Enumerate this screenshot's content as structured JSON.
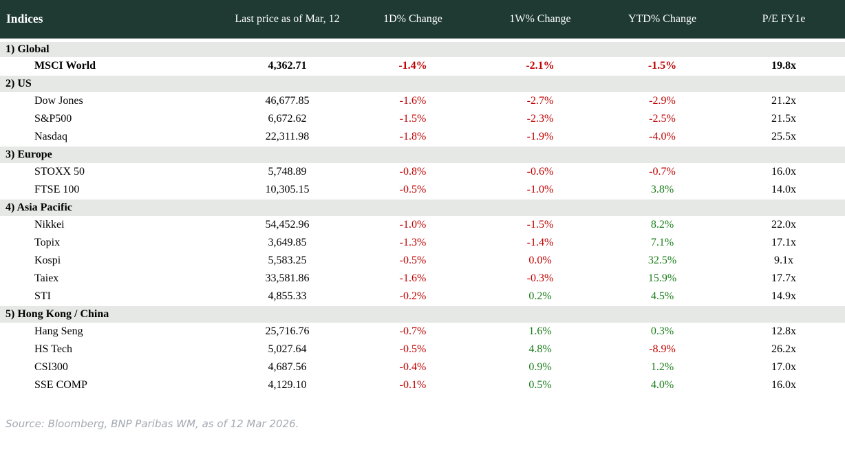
{
  "header": {
    "columns": [
      "Indices",
      "Last price as of Mar, 12",
      "1D% Change",
      "1W% Change",
      "YTD% Change",
      "P/E FY1e"
    ]
  },
  "sections": [
    {
      "label": "1) Global",
      "rows": [
        {
          "name": "MSCI World",
          "last_price": "4,362.71",
          "d1": {
            "text": "-1.4%",
            "tone": "neg"
          },
          "w1": {
            "text": "-2.1%",
            "tone": "neg"
          },
          "ytd": {
            "text": "-1.5%",
            "tone": "neg"
          },
          "pe": "19.8x",
          "bold": true
        }
      ]
    },
    {
      "label": "2) US",
      "rows": [
        {
          "name": "Dow Jones",
          "last_price": "46,677.85",
          "d1": {
            "text": "-1.6%",
            "tone": "neg"
          },
          "w1": {
            "text": "-2.7%",
            "tone": "neg"
          },
          "ytd": {
            "text": "-2.9%",
            "tone": "neg"
          },
          "pe": "21.2x",
          "bold": false
        },
        {
          "name": "S&P500",
          "last_price": "6,672.62",
          "d1": {
            "text": "-1.5%",
            "tone": "neg"
          },
          "w1": {
            "text": "-2.3%",
            "tone": "neg"
          },
          "ytd": {
            "text": "-2.5%",
            "tone": "neg"
          },
          "pe": "21.5x",
          "bold": false
        },
        {
          "name": "Nasdaq",
          "last_price": "22,311.98",
          "d1": {
            "text": "-1.8%",
            "tone": "neg"
          },
          "w1": {
            "text": "-1.9%",
            "tone": "neg"
          },
          "ytd": {
            "text": "-4.0%",
            "tone": "neg"
          },
          "pe": "25.5x",
          "bold": false
        }
      ]
    },
    {
      "label": "3) Europe",
      "rows": [
        {
          "name": "STOXX 50",
          "last_price": "5,748.89",
          "d1": {
            "text": "-0.8%",
            "tone": "neg"
          },
          "w1": {
            "text": "-0.6%",
            "tone": "neg"
          },
          "ytd": {
            "text": "-0.7%",
            "tone": "neg"
          },
          "pe": "16.0x",
          "bold": false
        },
        {
          "name": "FTSE 100",
          "last_price": "10,305.15",
          "d1": {
            "text": "-0.5%",
            "tone": "neg"
          },
          "w1": {
            "text": "-1.0%",
            "tone": "neg"
          },
          "ytd": {
            "text": "3.8%",
            "tone": "pos"
          },
          "pe": "14.0x",
          "bold": false
        }
      ]
    },
    {
      "label": "4) Asia Pacific",
      "rows": [
        {
          "name": "Nikkei",
          "last_price": "54,452.96",
          "d1": {
            "text": "-1.0%",
            "tone": "neg"
          },
          "w1": {
            "text": "-1.5%",
            "tone": "neg"
          },
          "ytd": {
            "text": "8.2%",
            "tone": "pos"
          },
          "pe": "22.0x",
          "bold": false
        },
        {
          "name": "Topix",
          "last_price": "3,649.85",
          "d1": {
            "text": "-1.3%",
            "tone": "neg"
          },
          "w1": {
            "text": "-1.4%",
            "tone": "neg"
          },
          "ytd": {
            "text": "7.1%",
            "tone": "pos"
          },
          "pe": "17.1x",
          "bold": false
        },
        {
          "name": "Kospi",
          "last_price": "5,583.25",
          "d1": {
            "text": "-0.5%",
            "tone": "neg"
          },
          "w1": {
            "text": "0.0%",
            "tone": "neg"
          },
          "ytd": {
            "text": "32.5%",
            "tone": "pos"
          },
          "pe": "9.1x",
          "bold": false
        },
        {
          "name": "Taiex",
          "last_price": "33,581.86",
          "d1": {
            "text": "-1.6%",
            "tone": "neg"
          },
          "w1": {
            "text": "-0.3%",
            "tone": "neg"
          },
          "ytd": {
            "text": "15.9%",
            "tone": "pos"
          },
          "pe": "17.7x",
          "bold": false
        },
        {
          "name": "STI",
          "last_price": "4,855.33",
          "d1": {
            "text": "-0.2%",
            "tone": "neg"
          },
          "w1": {
            "text": "0.2%",
            "tone": "pos"
          },
          "ytd": {
            "text": "4.5%",
            "tone": "pos"
          },
          "pe": "14.9x",
          "bold": false
        }
      ]
    },
    {
      "label": "5) Hong Kong / China",
      "rows": [
        {
          "name": "Hang Seng",
          "last_price": "25,716.76",
          "d1": {
            "text": "-0.7%",
            "tone": "neg"
          },
          "w1": {
            "text": "1.6%",
            "tone": "pos"
          },
          "ytd": {
            "text": "0.3%",
            "tone": "pos"
          },
          "pe": "12.8x",
          "bold": false
        },
        {
          "name": "HS Tech",
          "last_price": "5,027.64",
          "d1": {
            "text": "-0.5%",
            "tone": "neg"
          },
          "w1": {
            "text": "4.8%",
            "tone": "pos"
          },
          "ytd": {
            "text": "-8.9%",
            "tone": "neg"
          },
          "pe": "26.2x",
          "bold": false
        },
        {
          "name": "CSI300",
          "last_price": "4,687.56",
          "d1": {
            "text": "-0.4%",
            "tone": "neg"
          },
          "w1": {
            "text": "0.9%",
            "tone": "pos"
          },
          "ytd": {
            "text": "1.2%",
            "tone": "pos"
          },
          "pe": "17.0x",
          "bold": false
        },
        {
          "name": "SSE COMP",
          "last_price": "4,129.10",
          "d1": {
            "text": "-0.1%",
            "tone": "neg"
          },
          "w1": {
            "text": "0.5%",
            "tone": "pos"
          },
          "ytd": {
            "text": "4.0%",
            "tone": "pos"
          },
          "pe": "16.0x",
          "bold": false
        }
      ]
    }
  ],
  "source": "Source: Bloomberg, BNP Paribas WM, as of 12 Mar 2026.",
  "colors": {
    "header_bg": "#1e3a33",
    "section_bg": "#e5e8e5",
    "negative": "#c00000",
    "positive": "#1a7d1a",
    "source_text": "#a3aab2"
  },
  "chart_data": {
    "type": "table",
    "title": "Indices",
    "columns": [
      "Indices",
      "Last price as of Mar, 12",
      "1D% Change",
      "1W% Change",
      "YTD% Change",
      "P/E FY1e"
    ],
    "rows": [
      [
        "1) Global",
        "",
        "",
        "",
        "",
        ""
      ],
      [
        "MSCI World",
        "4,362.71",
        "-1.4%",
        "-2.1%",
        "-1.5%",
        "19.8x"
      ],
      [
        "2) US",
        "",
        "",
        "",
        "",
        ""
      ],
      [
        "Dow Jones",
        "46,677.85",
        "-1.6%",
        "-2.7%",
        "-2.9%",
        "21.2x"
      ],
      [
        "S&P500",
        "6,672.62",
        "-1.5%",
        "-2.3%",
        "-2.5%",
        "21.5x"
      ],
      [
        "Nasdaq",
        "22,311.98",
        "-1.8%",
        "-1.9%",
        "-4.0%",
        "25.5x"
      ],
      [
        "3) Europe",
        "",
        "",
        "",
        "",
        ""
      ],
      [
        "STOXX 50",
        "5,748.89",
        "-0.8%",
        "-0.6%",
        "-0.7%",
        "16.0x"
      ],
      [
        "FTSE 100",
        "10,305.15",
        "-0.5%",
        "-1.0%",
        "3.8%",
        "14.0x"
      ],
      [
        "4) Asia Pacific",
        "",
        "",
        "",
        "",
        ""
      ],
      [
        "Nikkei",
        "54,452.96",
        "-1.0%",
        "-1.5%",
        "8.2%",
        "22.0x"
      ],
      [
        "Topix",
        "3,649.85",
        "-1.3%",
        "-1.4%",
        "7.1%",
        "17.1x"
      ],
      [
        "Kospi",
        "5,583.25",
        "-0.5%",
        "0.0%",
        "32.5%",
        "9.1x"
      ],
      [
        "Taiex",
        "33,581.86",
        "-1.6%",
        "-0.3%",
        "15.9%",
        "17.7x"
      ],
      [
        "STI",
        "4,855.33",
        "-0.2%",
        "0.2%",
        "4.5%",
        "14.9x"
      ],
      [
        "5) Hong Kong / China",
        "",
        "",
        "",
        "",
        ""
      ],
      [
        "Hang Seng",
        "25,716.76",
        "-0.7%",
        "1.6%",
        "0.3%",
        "12.8x"
      ],
      [
        "HS Tech",
        "5,027.64",
        "-0.5%",
        "4.8%",
        "-8.9%",
        "26.2x"
      ],
      [
        "CSI300",
        "4,687.56",
        "-0.4%",
        "0.9%",
        "1.2%",
        "17.0x"
      ],
      [
        "SSE COMP",
        "4,129.10",
        "-0.1%",
        "0.5%",
        "4.0%",
        "16.0x"
      ]
    ]
  }
}
